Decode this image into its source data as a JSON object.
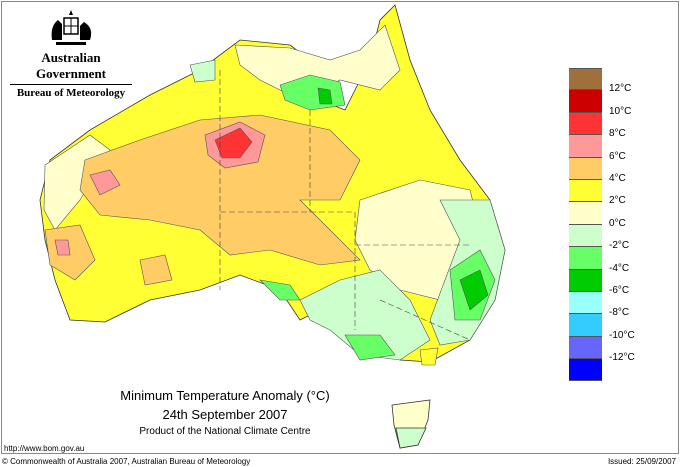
{
  "header": {
    "government": "Australian Government",
    "bureau": "Bureau of Meteorology"
  },
  "title": {
    "line1": "Minimum Temperature Anomaly (°C)",
    "line2": "24th September 2007",
    "line3": "Product of the National Climate Centre"
  },
  "legend": {
    "colors": [
      "#a0703c",
      "#cc0000",
      "#ff3333",
      "#ff9999",
      "#ffcc66",
      "#ffff33",
      "#ffffcc",
      "#ccffcc",
      "#66ff66",
      "#00cc00",
      "#99ffff",
      "#33ccff",
      "#6666ff",
      "#0000ff"
    ],
    "labels": [
      "12°C",
      "10°C",
      "8°C",
      "6°C",
      "4°C",
      "2°C",
      "0°C",
      "-2°C",
      "-4°C",
      "-6°C",
      "-8°C",
      "-10°C",
      "-12°C"
    ]
  },
  "footer": {
    "url": "http://www.bom.gov.au",
    "copyright": "© Commonwealth of Australia 2007, Australian Bureau of Meteorology",
    "issued": "Issued: 25/09/2007"
  }
}
